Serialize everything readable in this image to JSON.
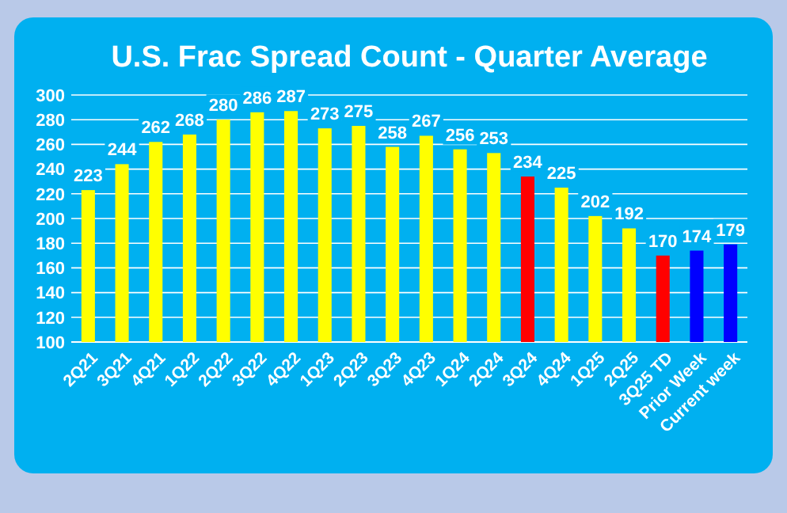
{
  "chart_data": {
    "type": "bar",
    "title": "U.S. Frac Spread Count - Quarter Average",
    "categories": [
      "2Q21",
      "3Q21",
      "4Q21",
      "1Q22",
      "2Q22",
      "3Q22",
      "4Q22",
      "1Q23",
      "2Q23",
      "3Q23",
      "4Q23",
      "1Q24",
      "2Q24",
      "3Q24",
      "4Q24",
      "1Q25",
      "2Q25",
      "3Q25 TD",
      "Prior Week",
      "Current week"
    ],
    "values": [
      223,
      244,
      262,
      268,
      280,
      286,
      287,
      273,
      275,
      258,
      267,
      256,
      253,
      234,
      225,
      202,
      192,
      170,
      174,
      179
    ],
    "colors": [
      "#ffff00",
      "#ffff00",
      "#ffff00",
      "#ffff00",
      "#ffff00",
      "#ffff00",
      "#ffff00",
      "#ffff00",
      "#ffff00",
      "#ffff00",
      "#ffff00",
      "#ffff00",
      "#ffff00",
      "#ff0000",
      "#ffff00",
      "#ffff00",
      "#ffff00",
      "#ff0000",
      "#0000ff",
      "#0000ff"
    ],
    "ylim": [
      100,
      300
    ],
    "yticks": [
      100,
      120,
      140,
      160,
      180,
      200,
      220,
      240,
      260,
      280,
      300
    ],
    "grid": "y",
    "data_labels": true
  }
}
